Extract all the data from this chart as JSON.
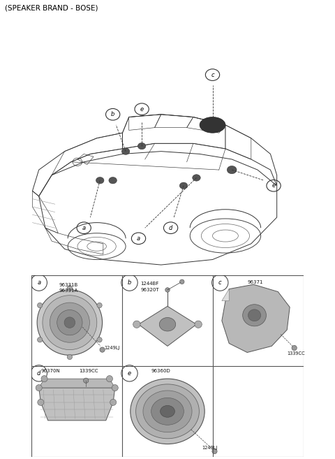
{
  "title": "(SPEAKER BRAND - BOSE)",
  "bg_color": "#ffffff",
  "text_color": "#000000",
  "line_color": "#333333",
  "light_gray": "#cccccc",
  "mid_gray": "#aaaaaa",
  "dark_gray": "#777777",
  "grid_line_color": "#888888",
  "cell_bg": "#ffffff",
  "parts": {
    "a": {
      "codes": [
        "96331B",
        "96331A"
      ],
      "screw": "1249LJ"
    },
    "b": {
      "codes": [
        "1244BF",
        "96320T"
      ]
    },
    "c": {
      "codes": [
        "96371"
      ],
      "screw": "1339CC"
    },
    "d": {
      "codes": [
        "96370N"
      ],
      "screw": "1339CC"
    },
    "e": {
      "codes": [
        "96360D"
      ],
      "screw": "1249LJ"
    }
  }
}
